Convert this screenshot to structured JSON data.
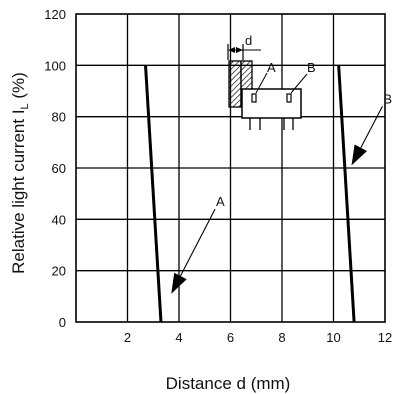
{
  "chart_data": {
    "type": "line",
    "title": "",
    "xlabel": "Distance d (mm)",
    "ylabel_main": "Relative light current  I",
    "ylabel_sub": "L",
    "ylabel_unit": " (%)",
    "xlim": [
      0,
      12
    ],
    "ylim": [
      0,
      120
    ],
    "xticks": [
      2,
      4,
      6,
      8,
      10,
      12
    ],
    "yticks": [
      0,
      20,
      40,
      60,
      80,
      100,
      120
    ],
    "grid": true,
    "series": [
      {
        "name": "A",
        "points": [
          [
            2.7,
            100
          ],
          [
            3.3,
            0
          ]
        ]
      },
      {
        "name": "B",
        "points": [
          [
            10.2,
            100
          ],
          [
            10.8,
            0
          ]
        ]
      }
    ],
    "annotations": [
      {
        "text": "A",
        "tip": [
          3.7,
          11
        ],
        "label_at": [
          5.4,
          44
        ]
      },
      {
        "text": "B",
        "tip": [
          10.7,
          61
        ],
        "label_at": [
          11.9,
          84
        ]
      }
    ],
    "inset": {
      "dimension_label": "d",
      "sensor_a_label": "A",
      "sensor_b_label": "B"
    }
  }
}
